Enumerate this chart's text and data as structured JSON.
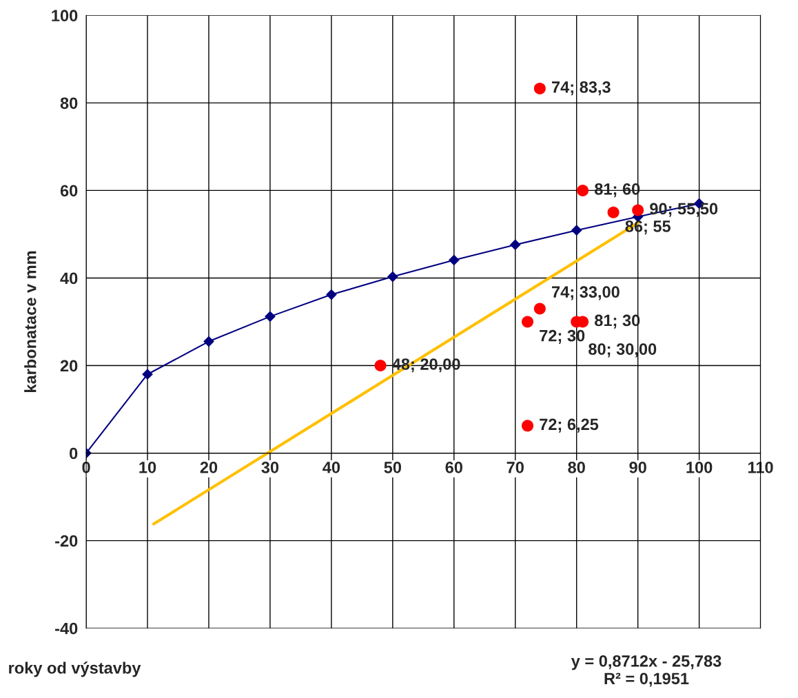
{
  "chart_data": {
    "type": "line",
    "xlabel": "roky od výstavby",
    "ylabel": "karbonatace v mm",
    "xlim": [
      0,
      110
    ],
    "ylim": [
      -40,
      100
    ],
    "xticks": [
      0,
      10,
      20,
      30,
      40,
      50,
      60,
      70,
      80,
      90,
      100,
      110
    ],
    "yticks": [
      -40,
      -20,
      0,
      20,
      40,
      60,
      80,
      100
    ],
    "grid": true,
    "series": [
      {
        "color": "#000080",
        "marker": "diamond",
        "x": [
          0,
          10,
          20,
          30,
          40,
          50,
          60,
          70,
          80,
          90,
          100
        ],
        "values": [
          0,
          18,
          25.5,
          31.2,
          36.2,
          40.3,
          44.1,
          47.6,
          50.9,
          54,
          57
        ]
      },
      {
        "type": "scatter",
        "color": "#ff0000",
        "marker": "circle",
        "x": [
          74,
          81,
          86,
          90,
          74,
          72,
          81,
          80,
          48,
          72
        ],
        "values": [
          83.3,
          60,
          55,
          55.5,
          33,
          30,
          30,
          30,
          20,
          6.25
        ],
        "value_labels": [
          "74; 83,3",
          "81; 60",
          "86; 55",
          "90; 55,50",
          "74; 33,00",
          "72; 30",
          "81; 30",
          "80; 30,00",
          "48; 20,00",
          "72; 6,25"
        ]
      },
      {
        "color": "#ffc000",
        "marker": "none",
        "x": [
          11,
          90
        ],
        "values": [
          -16.2,
          52.6
        ]
      }
    ],
    "annotations": [
      "y = 0,8712x - 25,783\nR² = 0,1951"
    ]
  }
}
